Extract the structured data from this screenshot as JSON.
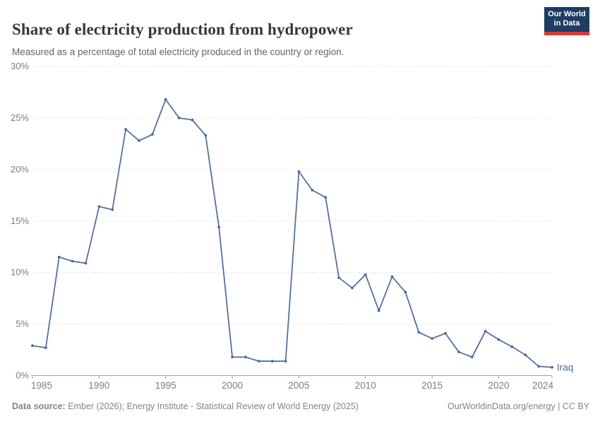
{
  "header": {
    "title": "Share of electricity production from hydropower",
    "subtitle": "Measured as a percentage of total electricity produced in the country or region.",
    "logo": {
      "line1": "Our World",
      "line2": "in Data"
    }
  },
  "chart_data": {
    "type": "line",
    "title": "Share of electricity production from hydropower",
    "xlabel": "",
    "ylabel": "",
    "xlim": [
      1985,
      2024
    ],
    "ylim": [
      0,
      30
    ],
    "grid": "dashed-horizontal",
    "legend_position": "end-of-line-label",
    "x_tick_years": [
      1985,
      1990,
      1995,
      2000,
      2005,
      2010,
      2015,
      2020,
      2024
    ],
    "x_tick_labels": [
      "1985",
      "1990",
      "1995",
      "2000",
      "2005",
      "2010",
      "2015",
      "2020",
      "2024"
    ],
    "y_ticks": [
      0,
      5,
      10,
      15,
      20,
      25,
      30
    ],
    "y_tick_labels": [
      "0%",
      "5%",
      "10%",
      "15%",
      "20%",
      "25%",
      "30%"
    ],
    "series": [
      {
        "name": "Iraq",
        "end_label": "Iraq",
        "color": "#4C6A9C",
        "x": [
          1985,
          1986,
          1987,
          1988,
          1989,
          1990,
          1991,
          1992,
          1993,
          1994,
          1995,
          1996,
          1997,
          1998,
          1999,
          2000,
          2001,
          2002,
          2003,
          2004,
          2005,
          2006,
          2007,
          2008,
          2009,
          2010,
          2011,
          2012,
          2013,
          2014,
          2015,
          2016,
          2017,
          2018,
          2019,
          2020,
          2021,
          2022,
          2023,
          2024
        ],
        "values": [
          2.9,
          2.7,
          11.5,
          11.1,
          10.9,
          16.4,
          16.1,
          23.9,
          22.8,
          23.4,
          26.8,
          25,
          24.8,
          23.3,
          14.4,
          1.8,
          1.8,
          1.4,
          1.4,
          1.4,
          19.8,
          18,
          17.3,
          9.5,
          8.5,
          9.8,
          6.3,
          9.6,
          8.1,
          4.2,
          3.6,
          4.1,
          2.3,
          1.8,
          4.3,
          3.5,
          2.8,
          2,
          0.9,
          0.8
        ]
      }
    ]
  },
  "footer": {
    "source_label": "Data source:",
    "source_text": " Ember (2026); Energy Institute - Statistical Review of World Energy (2025)",
    "credit": "OurWorldinData.org/energy | CC BY"
  },
  "colors": {
    "line": "#4C6A9C",
    "grid": "#dcdcdc",
    "axis": "#a3a3a3",
    "tick_text": "#7d7d7d",
    "title_text": "#373737",
    "subtitle_text": "#646464",
    "footer_text": "#858585",
    "logo_bg": "#1d3d63",
    "logo_bar": "#d73c32"
  }
}
